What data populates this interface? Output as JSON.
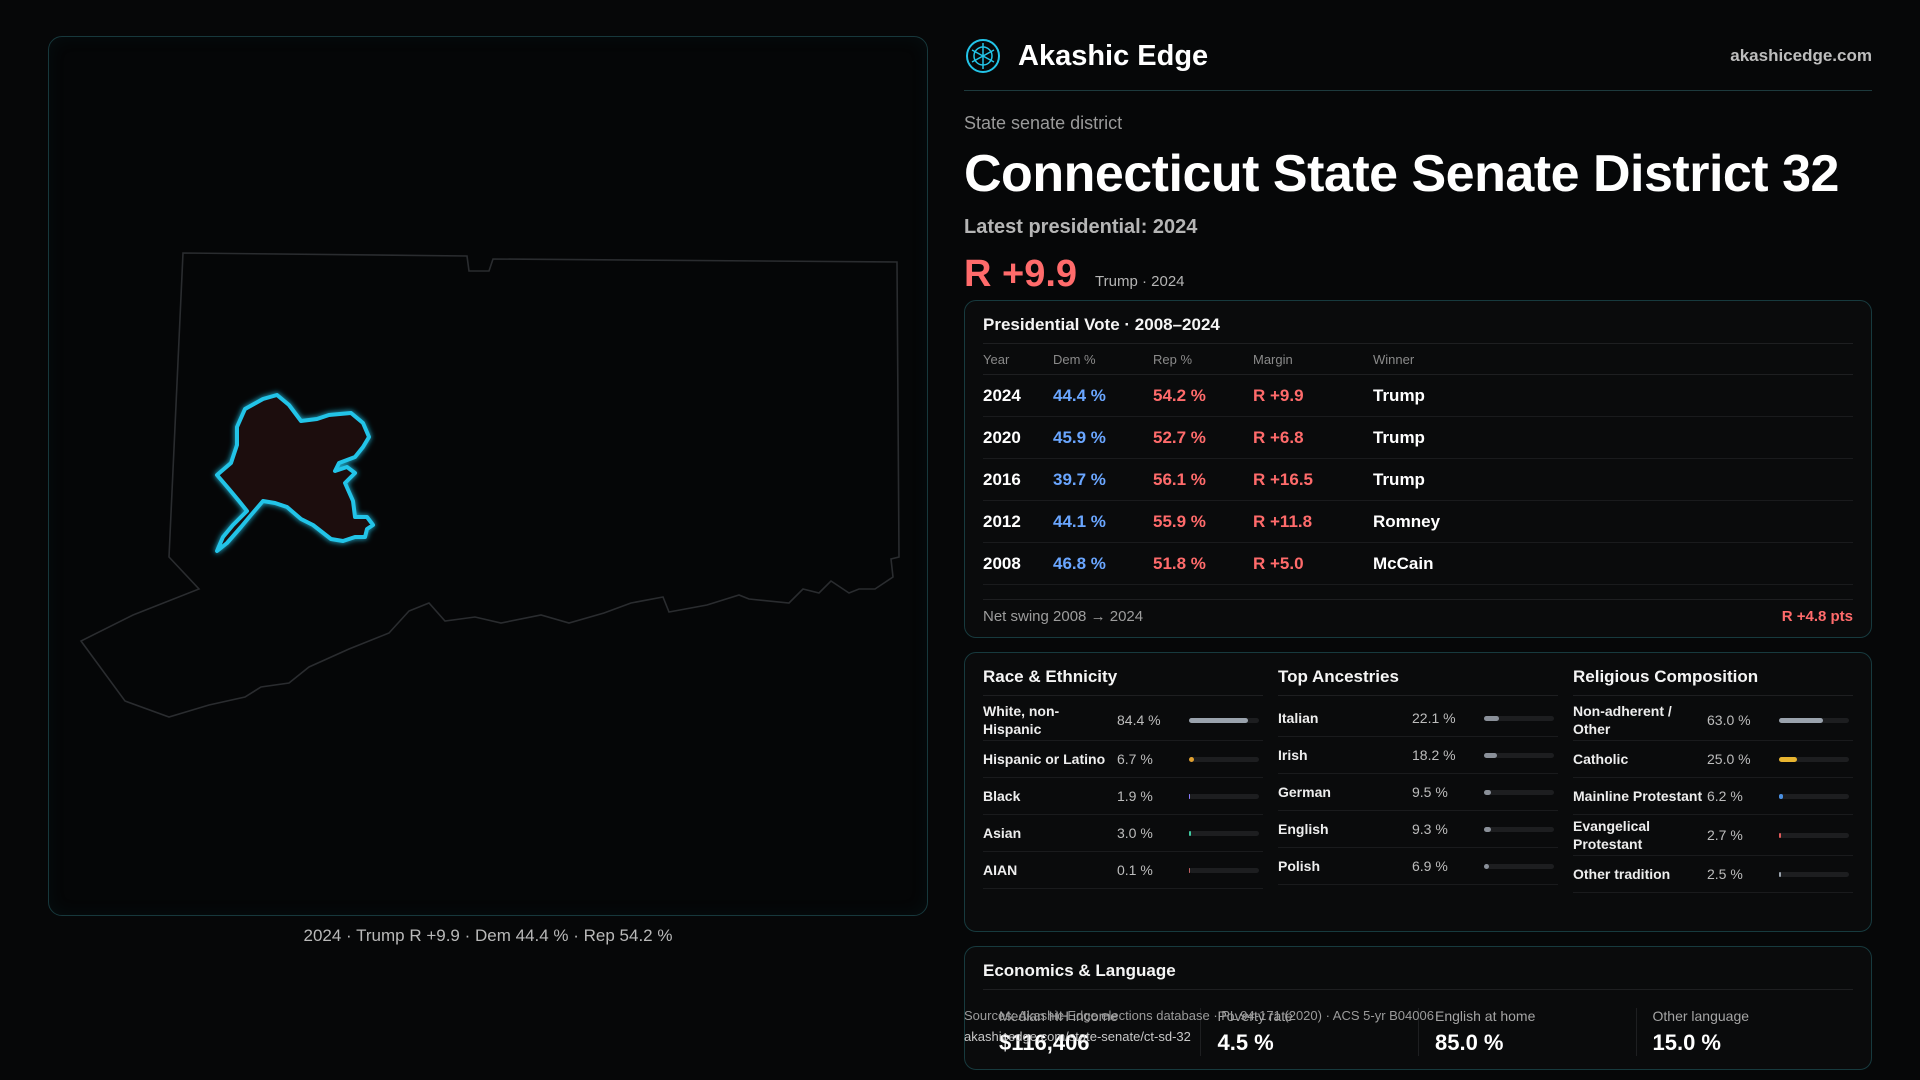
{
  "brand": {
    "name": "Akashic Edge",
    "url": "akashicedge.com"
  },
  "header": {
    "kicker": "State senate district",
    "title": "Connecticut State Senate District 32",
    "latest": "Latest presidential: 2024",
    "margin": "R +9.9",
    "margin_sub": "Trump · 2024"
  },
  "map": {
    "caption": "2024 · Trump R +9.9 · Dem 44.4 % · Rep 54.2 %"
  },
  "presidential": {
    "title": "Presidential Vote · 2008–2024",
    "headers": {
      "year": "Year",
      "dem": "Dem %",
      "rep": "Rep %",
      "margin": "Margin",
      "winner": "Winner"
    },
    "rows": [
      {
        "year": "2024",
        "dem": "44.4 %",
        "rep": "54.2 %",
        "margin": "R +9.9",
        "winner": "Trump"
      },
      {
        "year": "2020",
        "dem": "45.9 %",
        "rep": "52.7 %",
        "margin": "R +6.8",
        "winner": "Trump"
      },
      {
        "year": "2016",
        "dem": "39.7 %",
        "rep": "56.1 %",
        "margin": "R +16.5",
        "winner": "Trump"
      },
      {
        "year": "2012",
        "dem": "44.1 %",
        "rep": "55.9 %",
        "margin": "R +11.8",
        "winner": "Romney"
      },
      {
        "year": "2008",
        "dem": "46.8 %",
        "rep": "51.8 %",
        "margin": "R +5.0",
        "winner": "McCain"
      }
    ],
    "net_label": "Net swing 2008 → 2024",
    "net_value": "R +4.8 pts"
  },
  "race": {
    "title": "Race & Ethnicity",
    "items": [
      {
        "label": "White, non-Hispanic",
        "pct": "84.4 %",
        "value": 84.4,
        "color": "#9aa3ad"
      },
      {
        "label": "Hispanic or Latino",
        "pct": "6.7 %",
        "value": 6.7,
        "color": "#e0a030"
      },
      {
        "label": "Black",
        "pct": "1.9 %",
        "value": 1.9,
        "color": "#8a7cff"
      },
      {
        "label": "Asian",
        "pct": "3.0 %",
        "value": 3.0,
        "color": "#3fc9a0"
      },
      {
        "label": "AIAN",
        "pct": "0.1 %",
        "value": 0.1,
        "color": "#c06060"
      }
    ]
  },
  "ancestries": {
    "title": "Top Ancestries",
    "items": [
      {
        "label": "Italian",
        "pct": "22.1 %",
        "value": 22.1,
        "color": "#8a9099"
      },
      {
        "label": "Irish",
        "pct": "18.2 %",
        "value": 18.2,
        "color": "#8a9099"
      },
      {
        "label": "German",
        "pct": "9.5 %",
        "value": 9.5,
        "color": "#8a9099"
      },
      {
        "label": "English",
        "pct": "9.3 %",
        "value": 9.3,
        "color": "#8a9099"
      },
      {
        "label": "Polish",
        "pct": "6.9 %",
        "value": 6.9,
        "color": "#8a9099"
      }
    ]
  },
  "religion": {
    "title": "Religious Composition",
    "items": [
      {
        "label": "Non-adherent / Other",
        "pct": "63.0 %",
        "value": 63.0,
        "color": "#9aa3ad"
      },
      {
        "label": "Catholic",
        "pct": "25.0 %",
        "value": 25.0,
        "color": "#e8b530"
      },
      {
        "label": "Mainline Protestant",
        "pct": "6.2 %",
        "value": 6.2,
        "color": "#4a90e2"
      },
      {
        "label": "Evangelical Protestant",
        "pct": "2.7 %",
        "value": 2.7,
        "color": "#e05a5a"
      },
      {
        "label": "Other tradition",
        "pct": "2.5 %",
        "value": 2.5,
        "color": "#9aa3ad"
      }
    ]
  },
  "economics": {
    "title": "Economics & Language",
    "cells": [
      {
        "label": "Median HH income",
        "value": "$116,406"
      },
      {
        "label": "Poverty rate",
        "value": "4.5 %"
      },
      {
        "label": "English at home",
        "value": "85.0 %"
      },
      {
        "label": "Other language",
        "value": "15.0 %"
      }
    ]
  },
  "sources": {
    "text": "Sources: Akashic Edge elections database · PL 94-171 (2020) · ACS 5-yr B04006",
    "url": "akashicedge.com/state-senate/ct-sd-32"
  },
  "colors": {
    "accent": "#23c4e8",
    "rep": "#ff6b6b",
    "dem": "#6aa6ff"
  }
}
